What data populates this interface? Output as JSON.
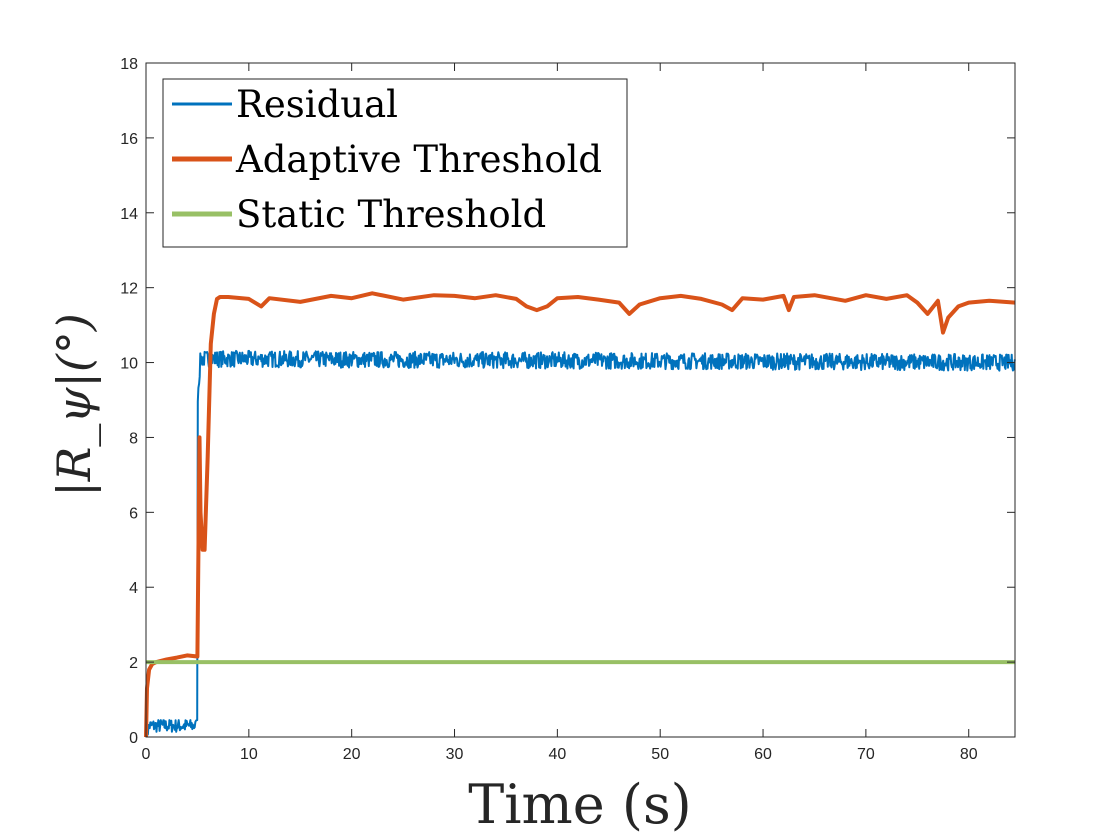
{
  "chart_data": {
    "type": "line",
    "xlabel": "Time (s)",
    "ylabel": "|R_ψ|(°)",
    "xlim": [
      0,
      84.5
    ],
    "ylim": [
      0,
      18
    ],
    "xticks": [
      0,
      10,
      20,
      30,
      40,
      50,
      60,
      70,
      80
    ],
    "yticks": [
      0,
      2,
      4,
      6,
      8,
      10,
      12,
      14,
      16,
      18
    ],
    "grid": false,
    "legend_position": "top-left",
    "series": [
      {
        "name": "Residual",
        "color": "#0072BD",
        "x": [
          0,
          0.3,
          4.9,
          5.0,
          5.3,
          84.5
        ],
        "y": [
          0,
          0.3,
          0.3,
          9.0,
          10.1,
          10.0
        ],
        "noise_amplitude_note_hidden": null
      },
      {
        "name": "Adaptive Threshold",
        "color": "#D95319",
        "x": [
          0,
          0.1,
          0.3,
          0.6,
          1.0,
          2.0,
          3.0,
          4.0,
          5.0,
          5.1,
          5.2,
          5.3,
          5.5,
          5.7,
          6.0,
          6.3,
          6.6,
          6.9,
          7.2,
          8,
          10,
          11.2,
          12,
          15,
          18,
          20,
          22,
          25,
          28,
          30,
          32,
          34,
          36,
          37,
          38,
          39,
          40,
          42,
          44,
          46,
          47,
          48,
          50,
          52,
          54,
          56,
          57,
          58,
          60,
          62,
          62.5,
          63,
          65,
          68,
          70,
          72,
          74,
          75,
          76,
          77,
          77.5,
          78,
          79,
          80,
          82,
          84.5
        ],
        "y": [
          0,
          1.3,
          1.8,
          1.95,
          2.0,
          2.07,
          2.12,
          2.18,
          2.15,
          4.9,
          8.0,
          6.0,
          5.0,
          5.0,
          7.5,
          10.5,
          11.3,
          11.7,
          11.75,
          11.75,
          11.7,
          11.5,
          11.72,
          11.62,
          11.78,
          11.72,
          11.85,
          11.68,
          11.8,
          11.78,
          11.72,
          11.8,
          11.7,
          11.5,
          11.4,
          11.5,
          11.72,
          11.75,
          11.68,
          11.6,
          11.3,
          11.55,
          11.72,
          11.78,
          11.7,
          11.55,
          11.4,
          11.72,
          11.68,
          11.78,
          11.4,
          11.75,
          11.8,
          11.65,
          11.8,
          11.7,
          11.8,
          11.6,
          11.3,
          11.65,
          10.8,
          11.2,
          11.5,
          11.6,
          11.65,
          11.6
        ]
      },
      {
        "name": "Static Threshold",
        "color": "#98C065",
        "x": [
          0,
          84.5
        ],
        "y": [
          2,
          2
        ]
      }
    ]
  }
}
